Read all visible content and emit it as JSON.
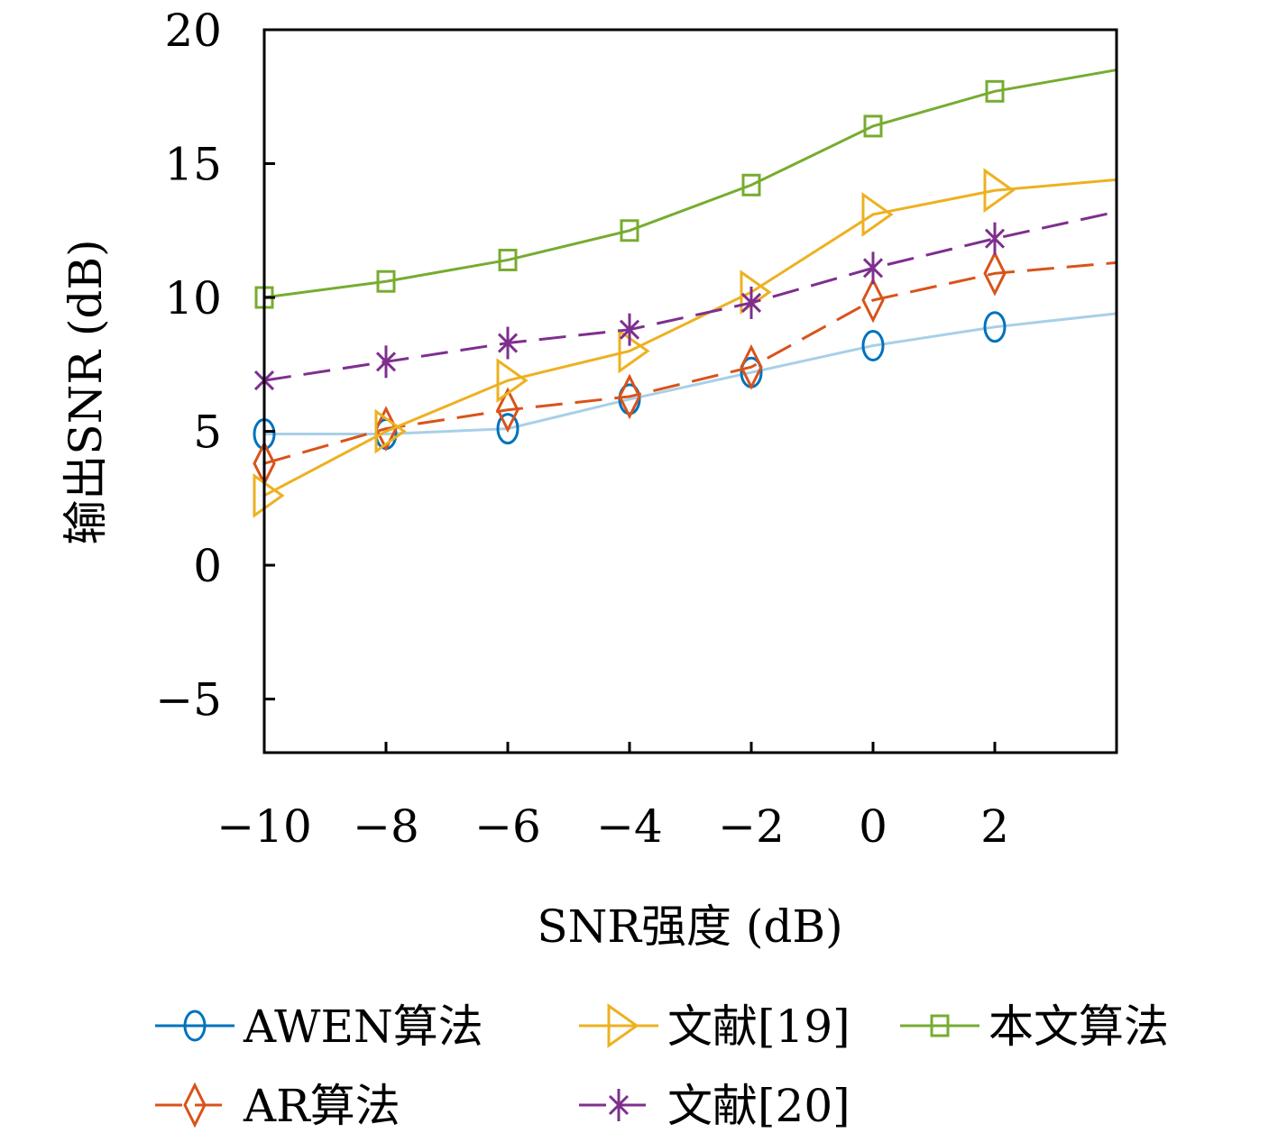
{
  "chart_data": {
    "type": "line",
    "xlabel": "SNR强度 (dB)",
    "ylabel": "输出SNR (dB)",
    "xlim": [
      -10,
      4
    ],
    "ylim": [
      -7,
      20
    ],
    "x_ticks": [
      -10,
      -8,
      -6,
      -4,
      -2,
      0,
      2
    ],
    "x_tick_labels": [
      "−10",
      "−8",
      "−6",
      "−4",
      "−2",
      "0",
      "2"
    ],
    "y_ticks": [
      -5,
      0,
      5,
      10,
      15,
      20
    ],
    "y_tick_labels": [
      "−5",
      "0",
      "5",
      "10",
      "15",
      "20"
    ],
    "grid": false,
    "legend_position": "bottom",
    "x": [
      -10,
      -8,
      -6,
      -4,
      -2,
      0,
      2,
      4
    ],
    "series": [
      {
        "name": "AWEN算法",
        "values": [
          4.9,
          4.9,
          5.1,
          6.2,
          7.2,
          8.2,
          8.9,
          9.4
        ],
        "color": "#0072BD",
        "line_color": "#A8D0E8",
        "dash": "solid",
        "marker": "ellipse"
      },
      {
        "name": "AR算法",
        "values": [
          3.8,
          5.1,
          5.8,
          6.3,
          7.4,
          9.9,
          10.9,
          11.3
        ],
        "color": "#D95319",
        "line_color": "#D95319",
        "dash": "dashed",
        "marker": "diamond"
      },
      {
        "name": "文献[19]",
        "values": [
          2.6,
          5.0,
          6.9,
          8.0,
          10.2,
          13.1,
          14.0,
          14.4
        ],
        "color": "#EDB120",
        "line_color": "#EDB120",
        "dash": "solid",
        "marker": "triangle-right"
      },
      {
        "name": "文献[20]",
        "values": [
          6.9,
          7.6,
          8.3,
          8.8,
          9.8,
          11.1,
          12.2,
          13.2
        ],
        "color": "#7E2F8E",
        "line_color": "#7E2F8E",
        "dash": "dashed",
        "marker": "asterisk"
      },
      {
        "name": "本文算法",
        "values": [
          10.0,
          10.6,
          11.4,
          12.5,
          14.2,
          16.4,
          17.7,
          18.5
        ],
        "color": "#77AC30",
        "line_color": "#77AC30",
        "dash": "solid",
        "marker": "square"
      }
    ]
  }
}
